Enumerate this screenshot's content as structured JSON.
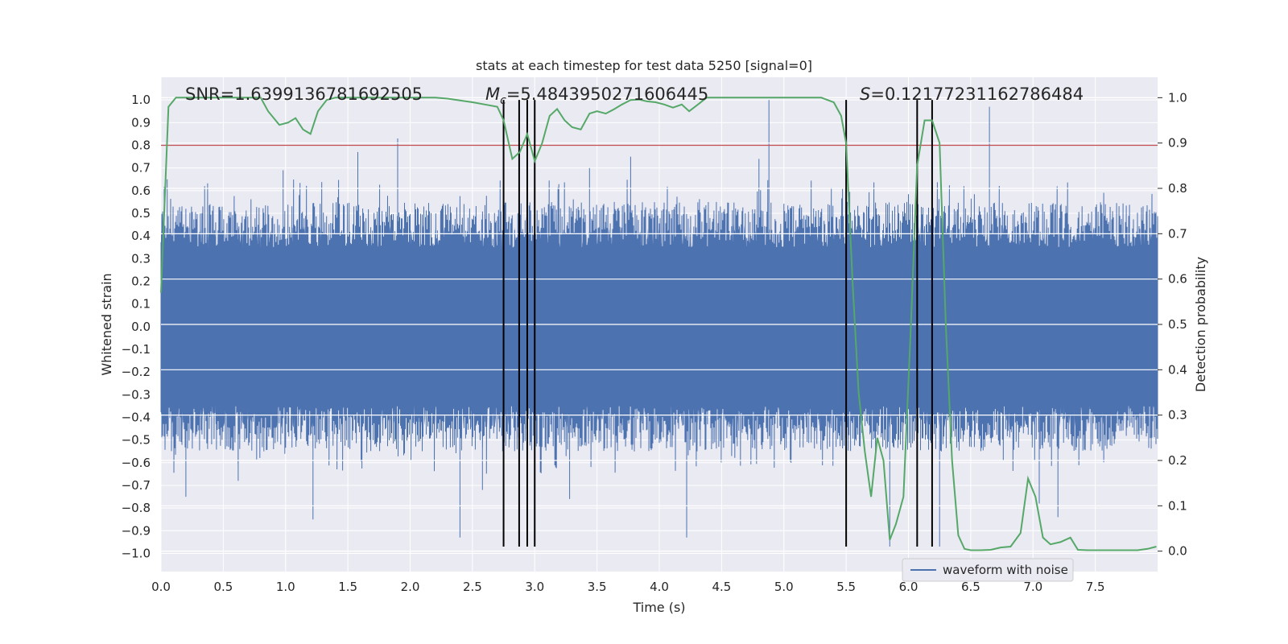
{
  "chart_data": {
    "type": "line",
    "title": "stats at each timestep for test data 5250 [signal=0]",
    "xlabel": "Time (s)",
    "ylabel": "Whitened strain",
    "y2label": "Detection probability",
    "xlim": [
      0,
      8
    ],
    "ylim": [
      -1.08,
      1.1
    ],
    "y2lim": [
      -0.045,
      1.045
    ],
    "xticks": [
      0.0,
      0.5,
      1.0,
      1.5,
      2.0,
      2.5,
      3.0,
      3.5,
      4.0,
      4.5,
      5.0,
      5.5,
      6.0,
      6.5,
      7.0,
      7.5
    ],
    "xtick_labels": [
      "0.0",
      "0.5",
      "1.0",
      "1.5",
      "2.0",
      "2.5",
      "3.0",
      "3.5",
      "4.0",
      "4.5",
      "5.0",
      "5.5",
      "6.0",
      "6.5",
      "7.0",
      "7.5"
    ],
    "yticks": [
      -1.0,
      -0.9,
      -0.8,
      -0.7,
      -0.6,
      -0.5,
      -0.4,
      -0.3,
      -0.2,
      -0.1,
      0.0,
      0.1,
      0.2,
      0.3,
      0.4,
      0.5,
      0.6,
      0.7,
      0.8,
      0.9,
      1.0
    ],
    "ytick_labels": [
      "−1.0",
      "−0.9",
      "−0.8",
      "−0.7",
      "−0.6",
      "−0.5",
      "−0.4",
      "−0.3",
      "−0.2",
      "−0.1",
      "0.0",
      "0.1",
      "0.2",
      "0.3",
      "0.4",
      "0.5",
      "0.6",
      "0.7",
      "0.8",
      "0.9",
      "1.0"
    ],
    "y2ticks": [
      0.0,
      0.1,
      0.2,
      0.3,
      0.4,
      0.5,
      0.6,
      0.7,
      0.8,
      0.9,
      1.0
    ],
    "y2tick_labels": [
      "0.0",
      "0.1",
      "0.2",
      "0.3",
      "0.4",
      "0.5",
      "0.6",
      "0.7",
      "0.8",
      "0.9",
      "1.0"
    ],
    "annotations": {
      "snr_label": "SNR=1.6399136781692505",
      "mc_symbol": "M",
      "mc_subscript": "c",
      "mc_value": "=5.4843950271606445",
      "s_symbol": "S",
      "s_value": "=0.12177231162786484"
    },
    "threshold": 0.8,
    "vertical_lines_x": [
      2.75,
      2.875,
      2.94,
      3.0,
      5.5,
      6.07,
      6.19
    ],
    "vertical_lines_yrange": [
      -0.97,
      1.0
    ],
    "series": [
      {
        "name": "waveform with noise",
        "color": "#4c72b0",
        "envelope_base": 0.3,
        "envelope_range": [
          0.22,
          0.45
        ],
        "spike_x": [
          0.05,
          0.2,
          0.35,
          0.62,
          0.98,
          1.22,
          1.58,
          1.9,
          2.4,
          2.58,
          3.28,
          3.44,
          3.77,
          4.22,
          4.8,
          4.88,
          5.5,
          5.85,
          6.25,
          6.65,
          7.05,
          7.2
        ],
        "spike_y": [
          0.65,
          -0.75,
          0.62,
          -0.68,
          0.69,
          -0.85,
          0.77,
          0.83,
          -0.93,
          -0.72,
          -0.76,
          0.7,
          0.75,
          -0.93,
          0.74,
          1.0,
          -0.76,
          -0.97,
          -0.97,
          0.97,
          -0.78,
          -0.84
        ]
      },
      {
        "name": "detection probability",
        "color": "#55a868",
        "axis": "right",
        "x": [
          0,
          0.06,
          0.12,
          0.2,
          0.3,
          0.4,
          0.5,
          0.6,
          0.7,
          0.8,
          0.86,
          0.95,
          1.02,
          1.08,
          1.14,
          1.2,
          1.26,
          1.33,
          1.4,
          1.5,
          1.6,
          1.7,
          1.8,
          1.9,
          2.0,
          2.1,
          2.2,
          2.3,
          2.4,
          2.5,
          2.6,
          2.7,
          2.75,
          2.82,
          2.88,
          2.94,
          3.0,
          3.06,
          3.12,
          3.18,
          3.24,
          3.3,
          3.37,
          3.44,
          3.5,
          3.57,
          3.64,
          3.7,
          3.77,
          3.84,
          3.9,
          3.97,
          4.04,
          4.11,
          4.18,
          4.24,
          4.31,
          4.38,
          4.45,
          4.52,
          4.6,
          4.7,
          4.8,
          4.9,
          5.0,
          5.1,
          5.2,
          5.3,
          5.4,
          5.46,
          5.5,
          5.55,
          5.6,
          5.65,
          5.7,
          5.75,
          5.8,
          5.85,
          5.9,
          5.96,
          6.02,
          6.07,
          6.13,
          6.19,
          6.25,
          6.3,
          6.35,
          6.4,
          6.45,
          6.5,
          6.58,
          6.66,
          6.74,
          6.82,
          6.9,
          6.96,
          7.02,
          7.08,
          7.14,
          7.22,
          7.3,
          7.36,
          7.44,
          7.52,
          7.6,
          7.68,
          7.76,
          7.84,
          7.92,
          7.99
        ],
        "y": [
          0.57,
          0.98,
          1.0,
          1.0,
          1.0,
          1.0,
          1.0,
          1.0,
          1.0,
          1.0,
          0.97,
          0.94,
          0.945,
          0.955,
          0.93,
          0.92,
          0.97,
          0.995,
          1.0,
          1.0,
          1.0,
          1.0,
          1.0,
          1.0,
          1.0,
          1.0,
          1.0,
          0.998,
          0.994,
          0.99,
          0.985,
          0.98,
          0.95,
          0.865,
          0.88,
          0.92,
          0.86,
          0.9,
          0.96,
          0.975,
          0.95,
          0.935,
          0.93,
          0.965,
          0.97,
          0.965,
          0.975,
          0.985,
          0.995,
          0.996,
          0.992,
          0.99,
          0.985,
          0.978,
          0.985,
          0.97,
          0.985,
          1.0,
          1.0,
          1.0,
          1.0,
          1.0,
          1.0,
          1.0,
          1.0,
          1.0,
          1.0,
          1.0,
          0.99,
          0.96,
          0.9,
          0.6,
          0.35,
          0.22,
          0.12,
          0.25,
          0.2,
          0.025,
          0.06,
          0.12,
          0.5,
          0.85,
          0.95,
          0.95,
          0.9,
          0.5,
          0.2,
          0.035,
          0.005,
          0.002,
          0.002,
          0.003,
          0.008,
          0.01,
          0.04,
          0.16,
          0.12,
          0.03,
          0.015,
          0.02,
          0.03,
          0.003,
          0.002,
          0.002,
          0.002,
          0.002,
          0.002,
          0.002,
          0.005,
          0.01
        ]
      }
    ],
    "legend": {
      "label": "waveform with noise",
      "location": "lower-right"
    },
    "threshold_color": "#c44e52",
    "vline_color": "#000000",
    "background_color": "#eaeaf2",
    "grid_color": "#ffffff"
  }
}
